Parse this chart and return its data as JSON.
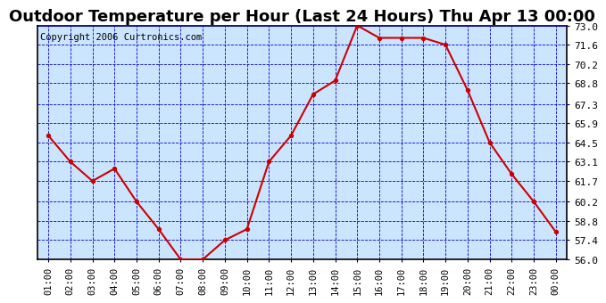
{
  "title": "Outdoor Temperature per Hour (Last 24 Hours) Thu Apr 13 00:00",
  "copyright": "Copyright 2006 Curtronics.com",
  "x_labels": [
    "01:00",
    "02:00",
    "03:00",
    "04:00",
    "05:00",
    "06:00",
    "07:00",
    "08:00",
    "09:00",
    "10:00",
    "11:00",
    "12:00",
    "13:00",
    "14:00",
    "15:00",
    "16:00",
    "17:00",
    "18:00",
    "19:00",
    "20:00",
    "21:00",
    "22:00",
    "23:00",
    "00:00"
  ],
  "temperatures": [
    65.0,
    63.1,
    61.7,
    62.6,
    60.2,
    58.2,
    56.0,
    56.0,
    57.4,
    58.2,
    63.1,
    65.0,
    68.0,
    69.0,
    73.0,
    72.1,
    72.1,
    72.1,
    71.6,
    68.3,
    64.5,
    62.2,
    60.2,
    58.0
  ],
  "ylim_min": 56.0,
  "ylim_max": 73.0,
  "yticks": [
    56.0,
    57.4,
    58.8,
    60.2,
    61.7,
    63.1,
    64.5,
    65.9,
    67.3,
    68.8,
    70.2,
    71.6,
    73.0
  ],
  "line_color": "#cc0000",
  "marker_color": "#cc0000",
  "marker_face": "#000000",
  "bg_color": "#cce5ff",
  "fig_bg": "#ffffff",
  "grid_color": "#0000cc",
  "title_fontsize": 13,
  "copyright_fontsize": 7.5,
  "tick_fontsize": 8,
  "xtick_fontsize": 7.5
}
